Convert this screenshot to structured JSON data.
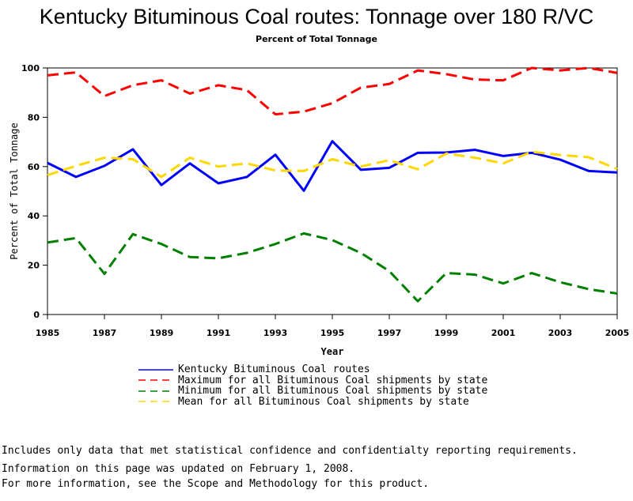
{
  "chart_data": {
    "type": "line",
    "title": "Kentucky Bituminous Coal routes: Tonnage over 180 R/VC",
    "subtitle": "Percent of Total Tonnage",
    "xlabel": "Year",
    "ylabel": "Percent of Total Tonnage",
    "xlim": [
      1985,
      2005
    ],
    "ylim": [
      0,
      100
    ],
    "x_ticks": [
      "1985",
      "1987",
      "1989",
      "1991",
      "1993",
      "1995",
      "1997",
      "1999",
      "2001",
      "2003",
      "2005"
    ],
    "y_ticks": [
      "0",
      "20",
      "40",
      "60",
      "80",
      "100"
    ],
    "grid": false,
    "legend_position": "bottom",
    "x": [
      1985,
      1986,
      1987,
      1988,
      1989,
      1990,
      1991,
      1992,
      1993,
      1994,
      1995,
      1996,
      1997,
      1998,
      1999,
      2000,
      2001,
      2002,
      2003,
      2004,
      2005
    ],
    "series": [
      {
        "name": "Kentucky Bituminous Coal routes",
        "color": "#0000ff",
        "style": "solid",
        "values": [
          61.5,
          55.8,
          60.3,
          67.0,
          52.5,
          61.3,
          53.2,
          55.8,
          64.8,
          50.2,
          70.3,
          58.7,
          59.5,
          65.6,
          65.7,
          66.8,
          64.3,
          65.6,
          62.8,
          58.2,
          57.6
        ]
      },
      {
        "name": "Maximum for all Bituminous Coal shipments by state",
        "color": "#ff0000",
        "style": "dashed",
        "values": [
          97.0,
          98.2,
          88.6,
          93.0,
          95.0,
          89.6,
          93.0,
          91.0,
          81.2,
          82.3,
          85.7,
          92.0,
          93.5,
          99.0,
          97.5,
          95.3,
          95.0,
          100.0,
          99.0,
          100.0,
          98.0
        ]
      },
      {
        "name": "Minimum for all Bituminous Coal shipments by state",
        "color": "#008000",
        "style": "dashed",
        "values": [
          29.2,
          31.0,
          16.5,
          32.6,
          28.6,
          23.3,
          22.8,
          25.0,
          28.6,
          32.9,
          30.2,
          25.0,
          17.6,
          5.4,
          16.8,
          16.2,
          12.6,
          16.8,
          13.1,
          10.3,
          8.5
        ]
      },
      {
        "name": "Mean for all Bituminous Coal shipments by state",
        "color": "#ffd700",
        "style": "dashed",
        "values": [
          56.5,
          60.3,
          63.6,
          63.0,
          55.8,
          63.6,
          60.0,
          61.3,
          58.4,
          58.2,
          63.0,
          60.0,
          62.6,
          58.9,
          65.3,
          63.6,
          61.3,
          66.0,
          64.7,
          63.8,
          59.0
        ]
      }
    ]
  },
  "notes": {
    "line1": "Includes only data that met statistical confidence and confidentialty reporting requirements.",
    "line2": "For more information, see the Scope and Methodology for this product.",
    "updated": "Information on this page was updated on February 1, 2008."
  }
}
